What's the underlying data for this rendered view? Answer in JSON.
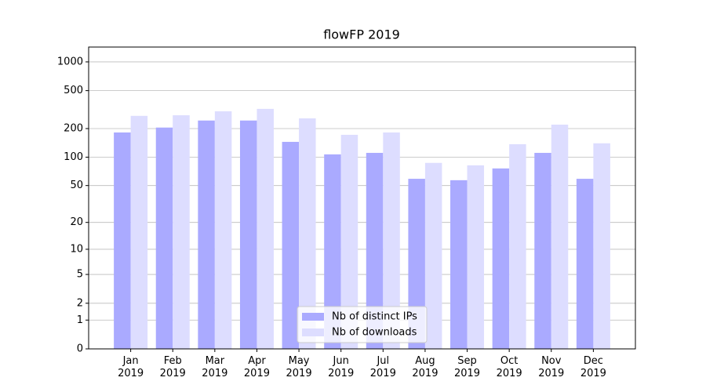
{
  "chart_data": {
    "type": "bar",
    "title": "flowFP 2019",
    "categories": [
      "Jan\n2019",
      "Feb\n2019",
      "Mar\n2019",
      "Apr\n2019",
      "May\n2019",
      "Jun\n2019",
      "Jul\n2019",
      "Aug\n2019",
      "Sep\n2019",
      "Oct\n2019",
      "Nov\n2019",
      "Dec\n2019"
    ],
    "series": [
      {
        "name": "Nb of distinct IPs",
        "color": "#aaaaff",
        "values": [
          182,
          205,
          243,
          243,
          145,
          107,
          111,
          59,
          57,
          76,
          111,
          59
        ]
      },
      {
        "name": "Nb of downloads",
        "color": "#ddddff",
        "values": [
          272,
          276,
          304,
          322,
          256,
          172,
          182,
          87,
          82,
          137,
          220,
          140
        ]
      }
    ],
    "yscale": "log1p",
    "ylim": [
      0,
      1430
    ],
    "yticks": [
      0,
      1,
      2,
      5,
      10,
      20,
      50,
      100,
      200,
      500,
      1000
    ],
    "grid": true,
    "legend": "lower center"
  }
}
